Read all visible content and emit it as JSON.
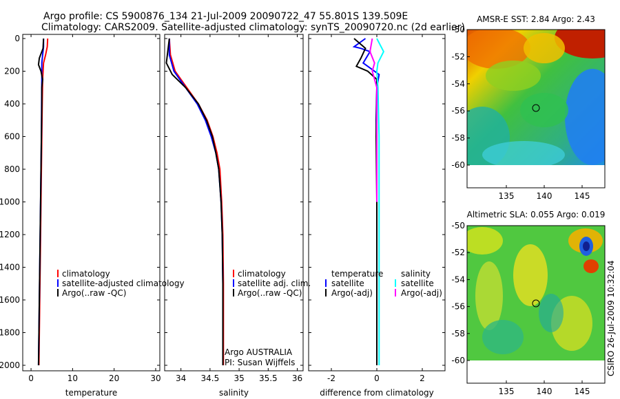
{
  "header": {
    "line1": "Argo profile: CS 5900876_134 21-Jul-2009 20090722_47 55.801S 139.509E",
    "line2": "Climatology: CARS2009. Satellite-adjusted climatology: synTS_20090720.nc (2d earlier)"
  },
  "side_label": "CSIRO 26-Jul-2009 10:32:04",
  "colors": {
    "red": "#ff0000",
    "blue": "#0000ff",
    "black": "#000000",
    "cyan": "#00ffff",
    "magenta": "#ff00ff"
  },
  "chart_data": [
    {
      "id": "temperature",
      "type": "line",
      "xlabel": "temperature",
      "xlim": [
        -2,
        31
      ],
      "ylim": [
        2050,
        0
      ],
      "xticks": [
        0,
        10,
        20,
        30
      ],
      "yticks": [
        0,
        200,
        400,
        600,
        800,
        1000,
        1200,
        1400,
        1600,
        1800,
        2000
      ],
      "legend": [
        "climatology",
        "satellite-adjusted climatology",
        "Argo(..raw -QC)"
      ],
      "series": [
        {
          "name": "climatology",
          "color": "red",
          "x": [
            4.0,
            3.9,
            3.5,
            3.0,
            2.8,
            2.7,
            2.6,
            2.5,
            2.4,
            2.3,
            2.2,
            2.1,
            2.0,
            1.9
          ],
          "y": [
            0,
            50,
            100,
            150,
            250,
            400,
            600,
            800,
            1000,
            1200,
            1400,
            1600,
            1800,
            2000
          ]
        },
        {
          "name": "satellite-adjusted",
          "color": "blue",
          "x": [
            3.0,
            3.0,
            2.8,
            2.6,
            2.6,
            2.55,
            2.5,
            2.4,
            2.3,
            2.2,
            2.1,
            2.0,
            1.9,
            1.8
          ],
          "y": [
            0,
            50,
            100,
            150,
            250,
            400,
            600,
            800,
            1000,
            1200,
            1400,
            1600,
            1800,
            2000
          ]
        },
        {
          "name": "Argo",
          "color": "black",
          "x": [
            3.0,
            2.9,
            2.0,
            1.8,
            2.4,
            2.8,
            2.6,
            2.6,
            2.5,
            2.4,
            2.3,
            2.2,
            2.1,
            2.0,
            1.9,
            1.8
          ],
          "y": [
            0,
            60,
            120,
            160,
            200,
            250,
            300,
            400,
            600,
            800,
            1000,
            1200,
            1400,
            1600,
            1800,
            2000
          ]
        }
      ]
    },
    {
      "id": "salinity",
      "type": "line",
      "xlabel": "salinity",
      "xlim": [
        33.72,
        36.1
      ],
      "ylim": [
        2050,
        0
      ],
      "xticks": [
        34,
        34.5,
        35,
        35.5,
        36
      ],
      "yticks": [
        0,
        200,
        400,
        600,
        800,
        1000,
        1200,
        1400,
        1600,
        1800,
        2000
      ],
      "legend": [
        "climatology",
        "satellite adj. clim.",
        "Argo(..raw -QC)"
      ],
      "annotation": [
        "Argo AUSTRALIA",
        "PI: Susan Wijffels"
      ],
      "series": [
        {
          "name": "climatology",
          "color": "red",
          "x": [
            33.8,
            33.82,
            33.9,
            34.1,
            34.3,
            34.45,
            34.55,
            34.62,
            34.67,
            34.7,
            34.72,
            34.73,
            34.73
          ],
          "y": [
            0,
            100,
            200,
            300,
            400,
            500,
            600,
            700,
            800,
            1000,
            1200,
            1500,
            2000
          ]
        },
        {
          "name": "satellite-adjusted",
          "color": "blue",
          "x": [
            33.8,
            33.8,
            33.88,
            34.08,
            34.28,
            34.42,
            34.52,
            34.6,
            34.65,
            34.69,
            34.71,
            34.72,
            34.72
          ],
          "y": [
            0,
            100,
            200,
            300,
            400,
            500,
            600,
            700,
            800,
            1000,
            1200,
            1500,
            2000
          ]
        },
        {
          "name": "Argo",
          "color": "black",
          "x": [
            33.8,
            33.75,
            33.85,
            34.08,
            34.3,
            34.44,
            34.54,
            34.6,
            34.65,
            34.69,
            34.71,
            34.72,
            34.72
          ],
          "y": [
            0,
            150,
            220,
            300,
            400,
            500,
            600,
            700,
            800,
            1000,
            1200,
            1500,
            2000
          ]
        }
      ]
    },
    {
      "id": "difference",
      "type": "line",
      "xlabel": "difference from climatology",
      "xlim": [
        -3,
        3
      ],
      "ylim": [
        2050,
        0
      ],
      "xticks": [
        -2,
        0,
        2
      ],
      "yticks": [
        0,
        200,
        400,
        600,
        800,
        1000,
        1200,
        1400,
        1600,
        1800,
        2000
      ],
      "legend_left": [
        "temperature",
        "satellite",
        "Argo(-adj)"
      ],
      "legend_right": [
        "salinity",
        "satellite",
        "Argo(-adj)"
      ],
      "series": [
        {
          "name": "temperature satellite",
          "color": "blue",
          "x": [
            -0.5,
            -1.0,
            -0.7,
            -0.3,
            -0.6,
            0.1,
            0.0,
            -0.03,
            0.0,
            0.0,
            0.0,
            0.0
          ],
          "y": [
            0,
            50,
            60,
            80,
            150,
            220,
            300,
            500,
            800,
            1200,
            1600,
            2000
          ]
        },
        {
          "name": "temperature Argo",
          "color": "black",
          "x": [
            -1.0,
            -0.5,
            -0.7,
            -0.9,
            -0.4,
            0.0,
            0.0,
            -0.03,
            0.0,
            0.0,
            0.0
          ],
          "y": [
            0,
            60,
            120,
            170,
            200,
            250,
            300,
            600,
            1000,
            1500,
            2000
          ]
        },
        {
          "name": "salinity satellite",
          "color": "cyan",
          "x": [
            0.0,
            0.3,
            0.05,
            0.0,
            0.05,
            0.1,
            0.1,
            0.1,
            0.1,
            0.1
          ],
          "y": [
            0,
            80,
            150,
            200,
            300,
            600,
            1000,
            1400,
            1800,
            2000
          ]
        },
        {
          "name": "salinity Argo",
          "color": "magenta",
          "x": [
            -0.2,
            -0.3,
            -0.1,
            -0.2,
            -0.1,
            0.0,
            0.0,
            0.0
          ],
          "y": [
            0,
            80,
            150,
            200,
            250,
            300,
            600,
            1000
          ]
        }
      ]
    }
  ],
  "maps": [
    {
      "id": "sst",
      "title": "AMSR-E SST: 2.84 Argo: 2.43",
      "xticks": [
        "135",
        "140",
        "145"
      ],
      "yticks": [
        "-50",
        "-52",
        "-54",
        "-56",
        "-58",
        "-60"
      ],
      "marker_lon": 139.5,
      "marker_lat": -55.8
    },
    {
      "id": "sla",
      "title": "Altimetric SLA: 0.055 Argo: 0.019",
      "xticks": [
        "135",
        "140",
        "145"
      ],
      "yticks": [
        "-50",
        "-52",
        "-54",
        "-56",
        "-58",
        "-60"
      ],
      "marker_lon": 139.5,
      "marker_lat": -55.8
    }
  ]
}
